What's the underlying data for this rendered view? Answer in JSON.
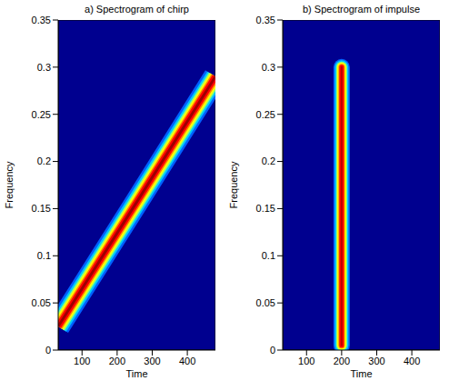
{
  "chart_data": [
    {
      "type": "line",
      "title": "a) Spectrogram of chirp",
      "x_label": "Time",
      "y_label": "Frequency",
      "x": [
        32,
        256,
        480
      ],
      "values": [
        0.025,
        0.157,
        0.29
      ],
      "xlim": [
        32,
        480
      ],
      "xticks": [
        100,
        200,
        300,
        400
      ],
      "ylim": [
        0,
        0.35
      ],
      "yticks": [
        0,
        0.05,
        0.1,
        0.15,
        0.2,
        0.25,
        0.3,
        0.35
      ]
    },
    {
      "type": "line",
      "title": "b) Spectrogram of impulse",
      "x_label": "Time",
      "y_label": "Frequency",
      "x": [
        200,
        200
      ],
      "values": [
        0.005,
        0.3
      ],
      "xlim": [
        32,
        480
      ],
      "xticks": [
        100,
        200,
        300,
        400
      ],
      "ylim": [
        0,
        0.35
      ],
      "yticks": [
        0,
        0.05,
        0.1,
        0.15,
        0.2,
        0.25,
        0.3,
        0.35
      ]
    }
  ]
}
